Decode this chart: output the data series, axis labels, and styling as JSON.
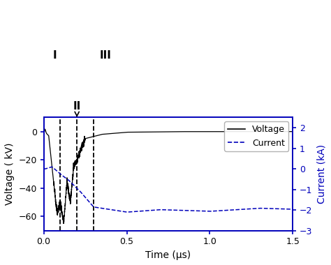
{
  "title": "",
  "xlabel": "Time (μs)",
  "ylabel_left": "Voltage ( kV)",
  "ylabel_right": "Current (kA)",
  "xlim": [
    0.0,
    1.5
  ],
  "ylim_left": [
    -70,
    10
  ],
  "ylim_right": [
    -3,
    2.5
  ],
  "yticks_left": [
    0,
    -20,
    -40,
    -60
  ],
  "yticks_right": [
    2,
    1,
    0,
    -1,
    -2,
    -3
  ],
  "xticks": [
    0.0,
    0.5,
    1.0,
    1.5
  ],
  "region_lines": [
    0.1,
    0.2,
    0.3
  ],
  "voltage_color": "#000000",
  "current_color": "#0000bb",
  "legend_voltage": "Voltage",
  "legend_current": "Current",
  "background_color": "#ffffff",
  "spine_color": "#0000bb"
}
